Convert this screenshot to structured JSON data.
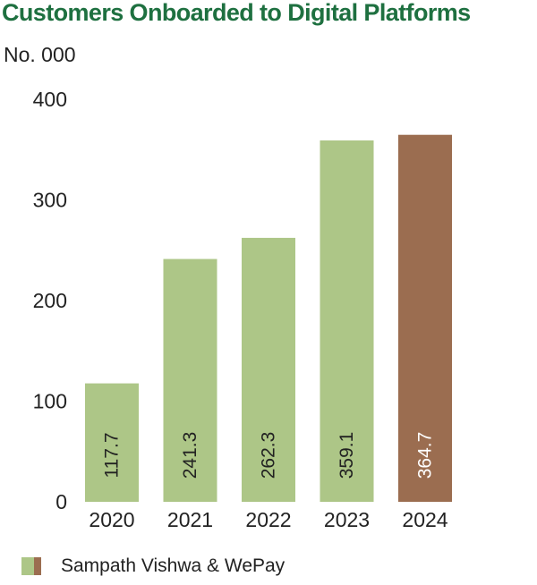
{
  "title": "Customers Onboarded to Digital Platforms",
  "unit_label": "No. 000",
  "legend": {
    "label": "Sampath Vishwa & WePay"
  },
  "colors": {
    "title": "#1e7040",
    "bar": "#adc687",
    "bar_highlight": "#9b6d50",
    "text": "#222222",
    "label_light": "#ffffff"
  },
  "chart_data": {
    "type": "bar",
    "title": "Customers Onboarded to Digital Platforms",
    "ylabel": "No. 000",
    "xlabel": "",
    "categories": [
      "2020",
      "2021",
      "2022",
      "2023",
      "2024"
    ],
    "series": [
      {
        "name": "Sampath Vishwa & WePay",
        "values": [
          117.7,
          241.3,
          262.3,
          359.1,
          364.7
        ]
      }
    ],
    "data_labels": [
      "117.7",
      "241.3",
      "262.3",
      "359.1",
      "364.7"
    ],
    "highlight_category": "2024",
    "ylim": [
      0,
      400
    ],
    "yticks": [
      "0",
      "100",
      "200",
      "300",
      "400"
    ],
    "grid": false,
    "legend_position": "bottom-left"
  }
}
